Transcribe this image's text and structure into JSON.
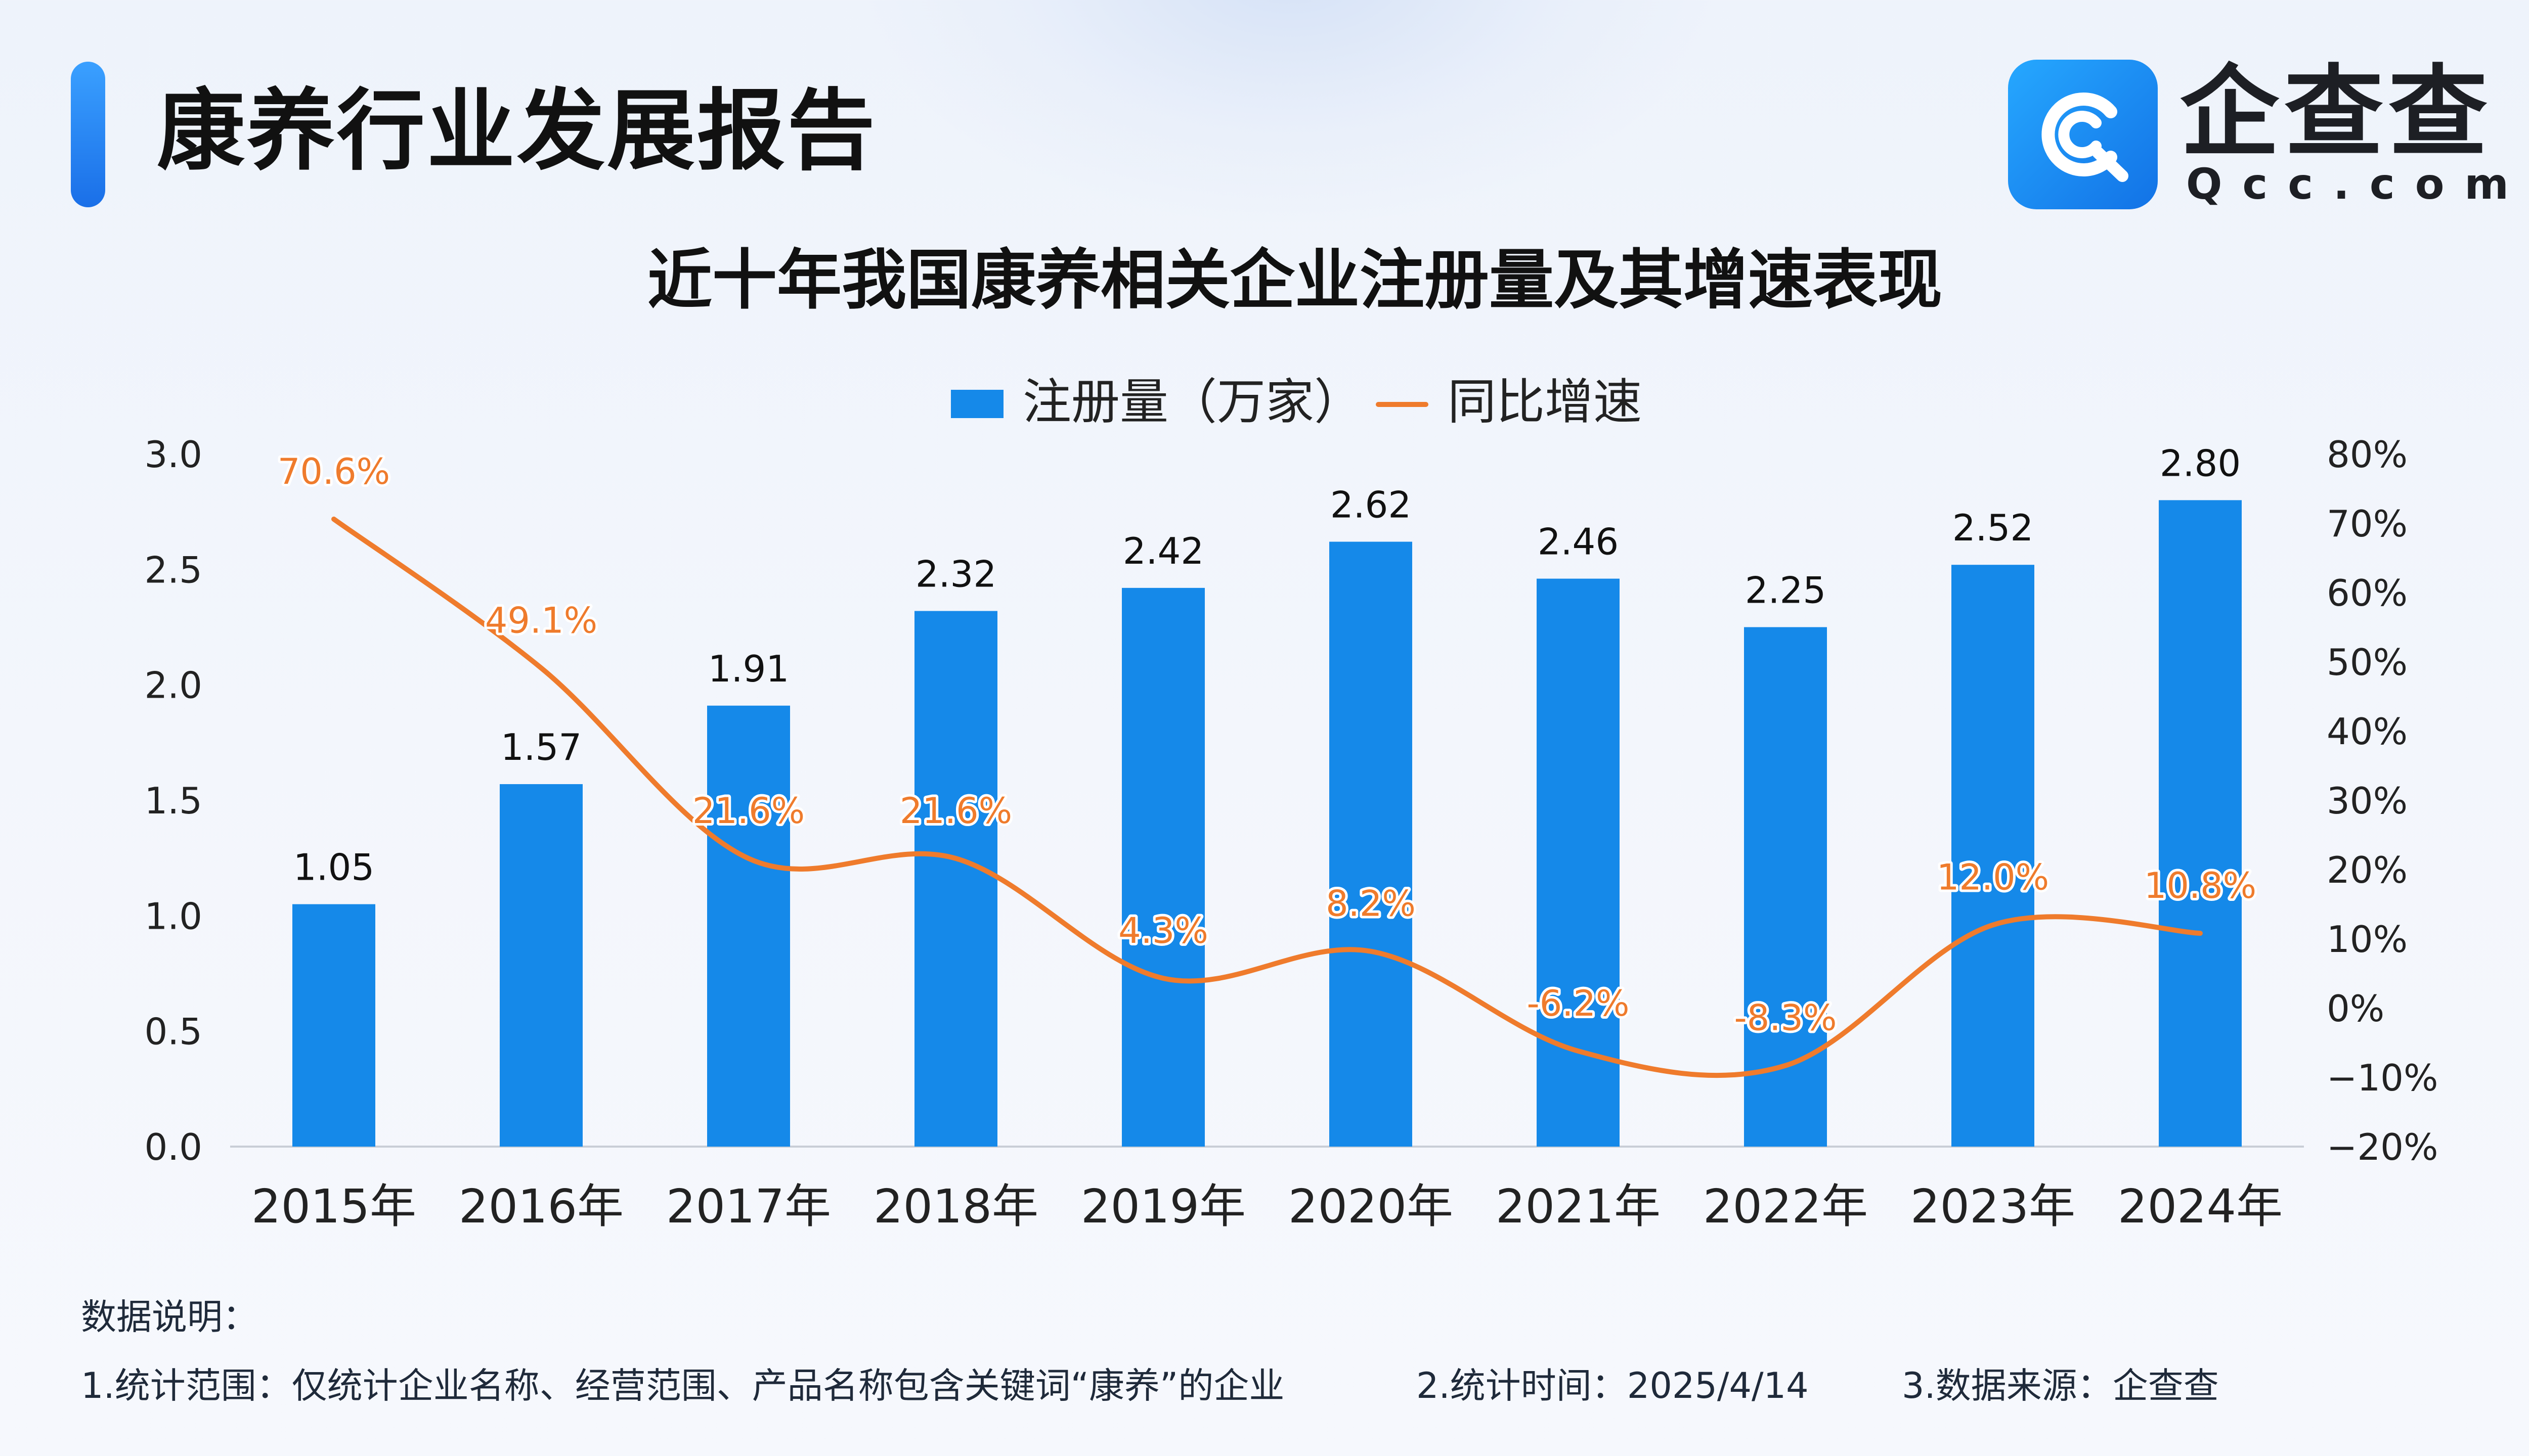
{
  "header": {
    "title": "康养行业发展报告"
  },
  "logo": {
    "cn": "企查查",
    "en": "Qcc.com"
  },
  "chart_data": {
    "type": "bar",
    "title": "近十年我国康养相关企业注册量及其增速表现",
    "categories": [
      "2015年",
      "2016年",
      "2017年",
      "2018年",
      "2019年",
      "2020年",
      "2021年",
      "2022年",
      "2023年",
      "2024年"
    ],
    "series": [
      {
        "name": "注册量（万家）",
        "type": "bar",
        "axis": "left",
        "color": "#1589e9",
        "values": [
          1.05,
          1.57,
          1.91,
          2.32,
          2.42,
          2.62,
          2.46,
          2.25,
          2.52,
          2.8
        ],
        "labels": [
          "1.05",
          "1.57",
          "1.91",
          "2.32",
          "2.42",
          "2.62",
          "2.46",
          "2.25",
          "2.52",
          "2.80"
        ]
      },
      {
        "name": "同比增速",
        "type": "line",
        "axis": "right",
        "color": "#ef7b2c",
        "values": [
          70.6,
          49.1,
          21.6,
          21.6,
          4.3,
          8.2,
          -6.2,
          -8.3,
          12.0,
          10.8
        ],
        "labels": [
          "70.6%",
          "49.1%",
          "21.6%",
          "21.6%",
          "4.3%",
          "8.2%",
          "-6.2%",
          "-8.3%",
          "12.0%",
          "10.8%"
        ]
      }
    ],
    "y_left": {
      "min": 0,
      "max": 3.0,
      "ticks": [
        "0.0",
        "0.5",
        "1.0",
        "1.5",
        "2.0",
        "2.5",
        "3.0"
      ]
    },
    "y_right": {
      "min": -20,
      "max": 80,
      "ticks": [
        "−20%",
        "−10%",
        "0%",
        "10%",
        "20%",
        "30%",
        "40%",
        "50%",
        "60%",
        "70%",
        "80%"
      ]
    },
    "legend_position": "top-center",
    "grid": false
  },
  "notes": {
    "heading": "数据说明：",
    "items": [
      "1.统计范围：仅统计企业名称、经营范围、产品名称包含关键词“康养”的企业",
      "2.统计时间：2025/4/14",
      "3.数据来源：企查查"
    ]
  }
}
